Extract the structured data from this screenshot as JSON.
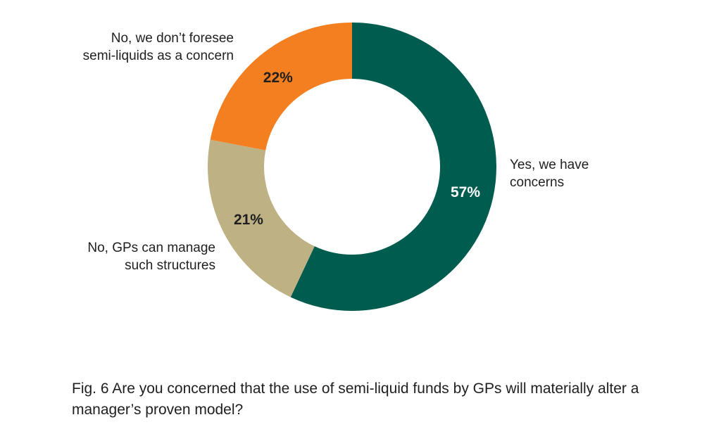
{
  "chart_data": {
    "type": "pie",
    "variant": "donut",
    "slices": [
      {
        "label_lines": [
          "Yes, we have",
          "concerns"
        ],
        "value": 57,
        "value_label": "57%",
        "color": "#005c4f",
        "value_label_color": "#ffffff"
      },
      {
        "label_lines": [
          "No, GPs can manage",
          "such structures"
        ],
        "value": 21,
        "value_label": "21%",
        "color": "#beb184",
        "value_label_color": "#1f1f1f"
      },
      {
        "label_lines": [
          "No, we don’t foresee",
          "semi-liquids as a concern"
        ],
        "value": 22,
        "value_label": "22%",
        "color": "#f47f20",
        "value_label_color": "#1f1f1f"
      }
    ],
    "start": "12 o'clock",
    "direction": "clockwise"
  },
  "caption": "Fig. 6 Are you concerned that the use of semi-liquid funds by GPs will materially alter a manager’s proven model?"
}
